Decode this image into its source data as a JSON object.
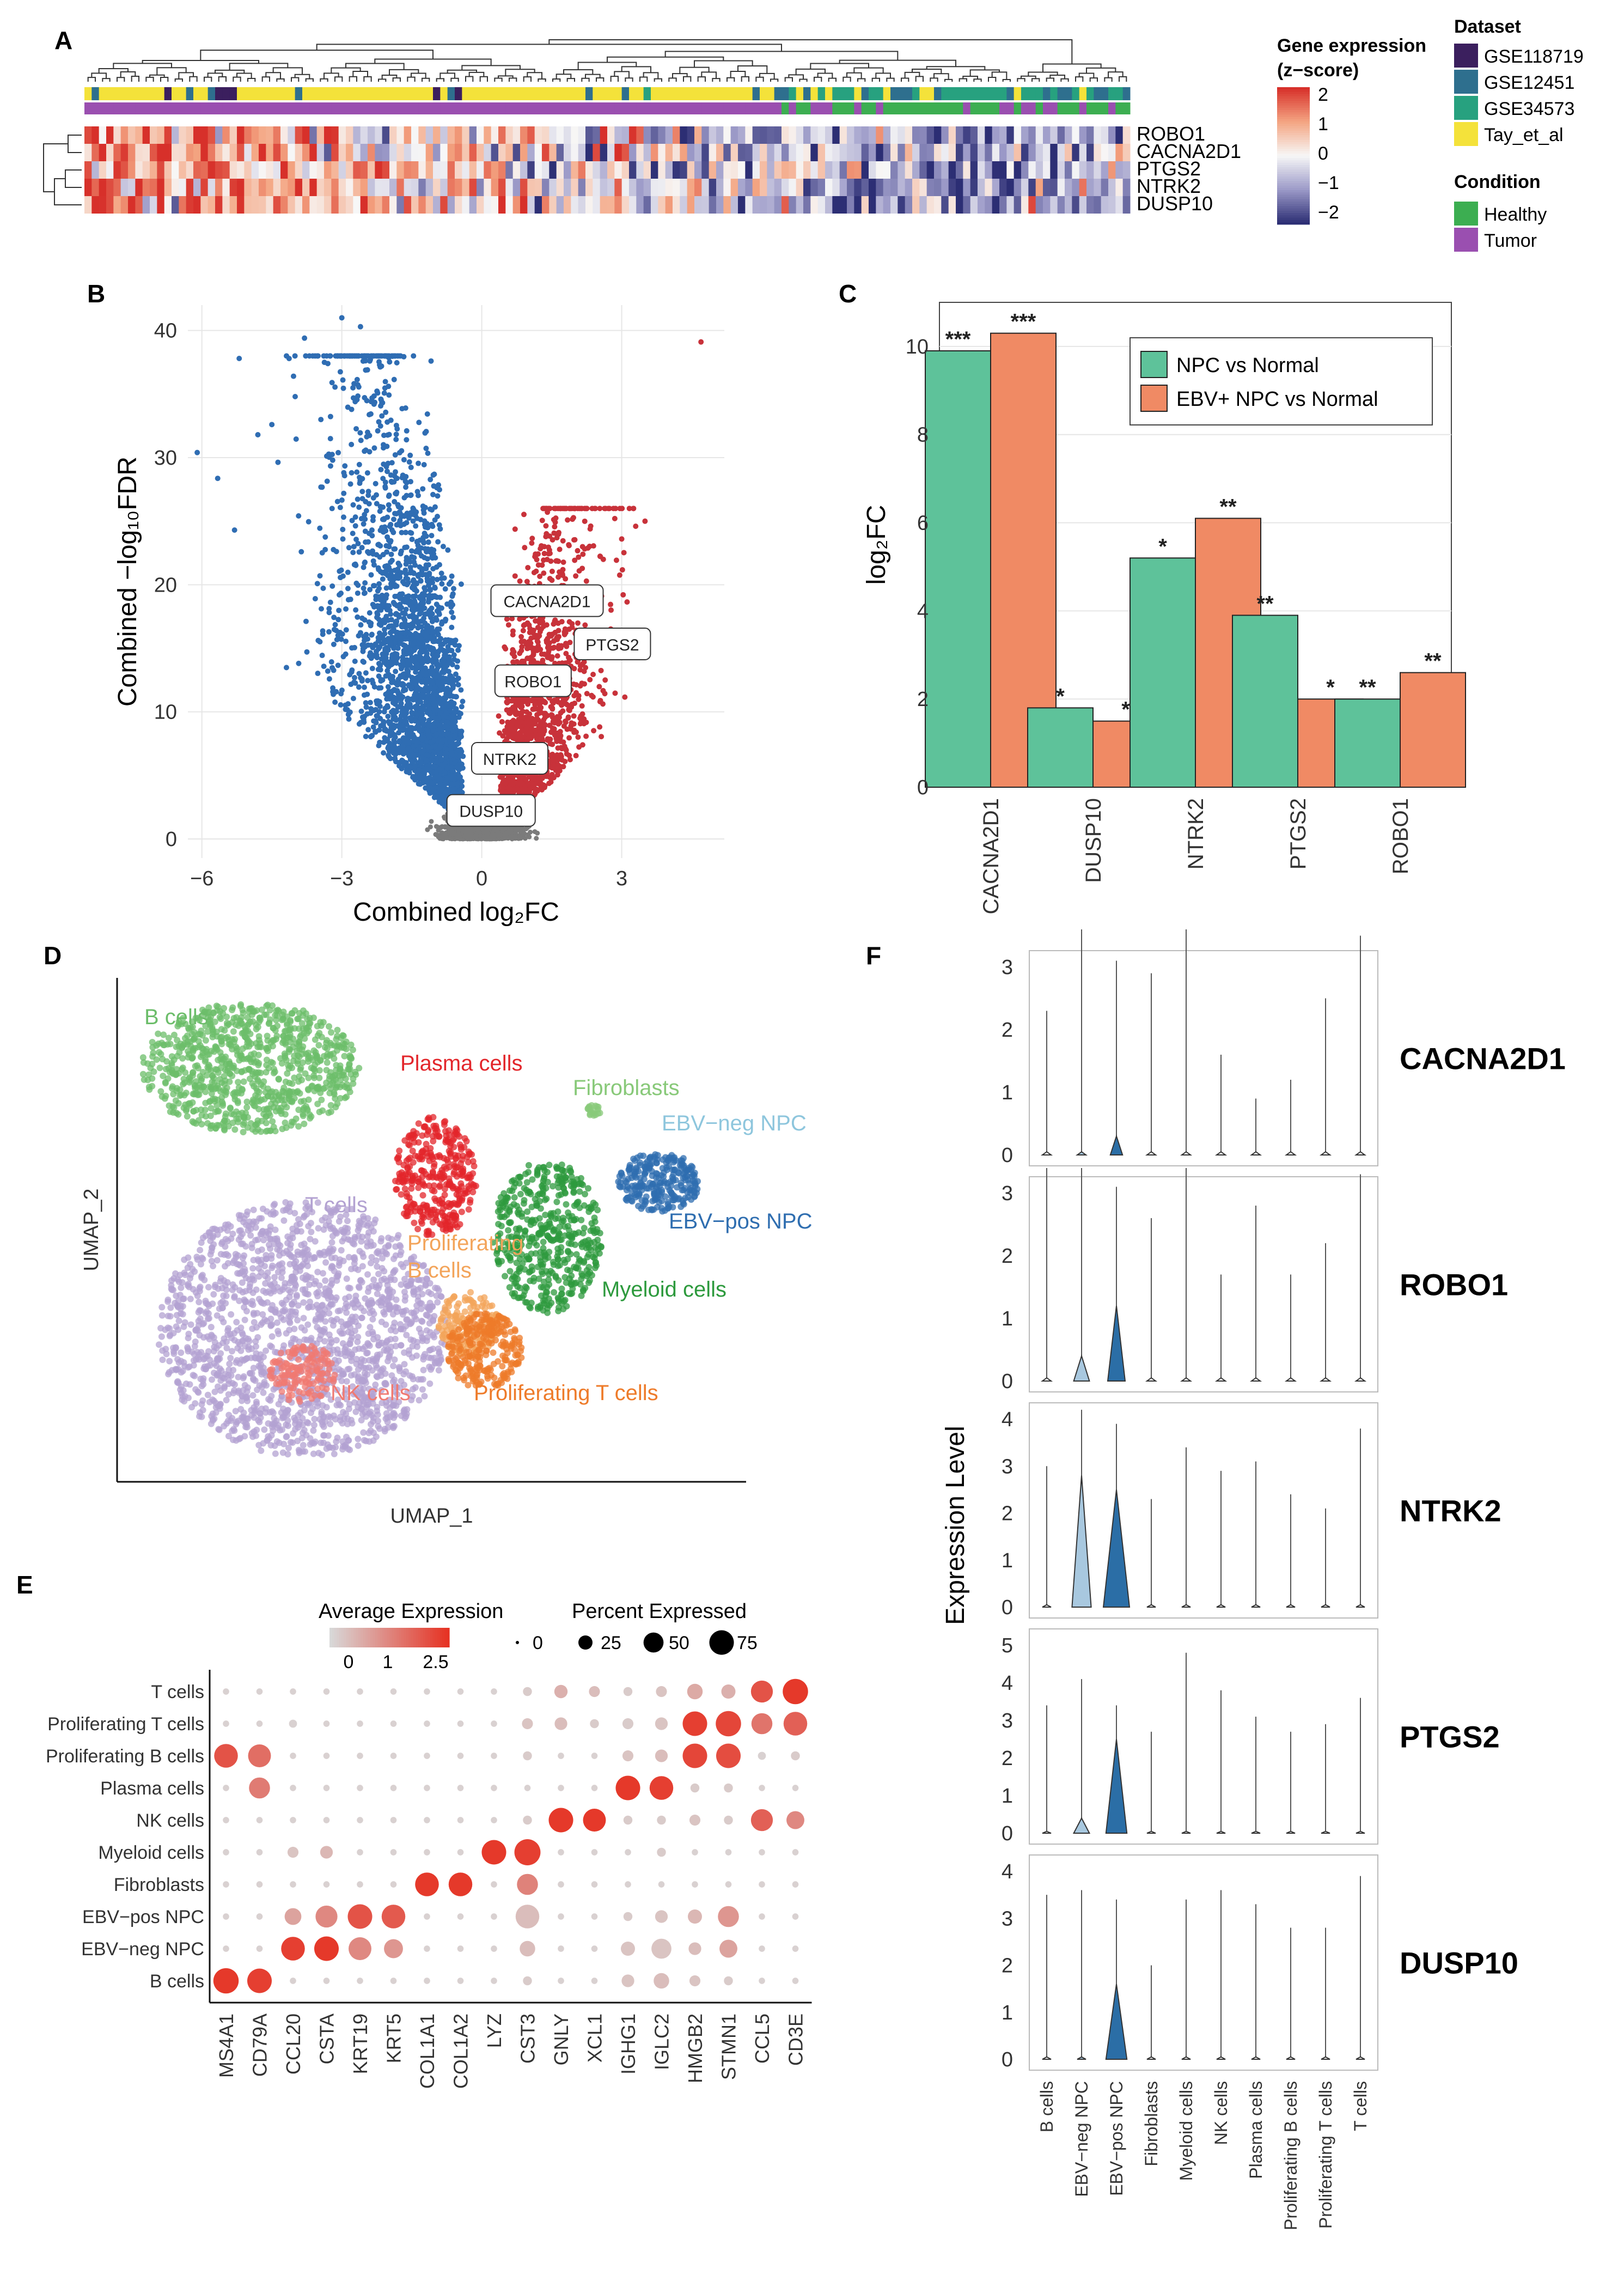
{
  "panels": {
    "a": "A",
    "b": "B",
    "c": "C",
    "d": "D",
    "e": "E",
    "f": "F"
  },
  "chart_data": [
    {
      "type": "heatmap",
      "panel": "A",
      "genes": [
        "ROBO1",
        "CACNA2D1",
        "PTGS2",
        "NTRK2",
        "DUSP10"
      ],
      "n_samples": 144,
      "legend_expression": {
        "title1": "Gene expression",
        "title2": "(z−score)",
        "ticks": [
          "2",
          "1",
          "0",
          "−1",
          "−2"
        ],
        "colors": [
          "#d7302a",
          "#f4a582",
          "#f7f7f7",
          "#9c9ac8",
          "#2c2e74"
        ]
      },
      "legend_dataset": {
        "title": "Dataset",
        "entries": [
          "GSE118719",
          "GSE12451",
          "GSE34573",
          "Tay_et_al"
        ],
        "colors": [
          "#3b1f5e",
          "#2e6f8e",
          "#27a17f",
          "#f4e23a"
        ]
      },
      "legend_condition": {
        "title": "Condition",
        "entries": [
          "Healthy",
          "Tumor"
        ],
        "colors": [
          "#3cae51",
          "#9a4fb0"
        ]
      }
    },
    {
      "type": "scatter",
      "panel": "B",
      "xlabel": "Combined log₂FC",
      "ylabel": "Combined −log₁₀FDR",
      "xlim": [
        -6.3,
        5.2
      ],
      "ylim": [
        -1.5,
        42
      ],
      "xticks": [
        "−6",
        "−3",
        "0",
        "3"
      ],
      "yticks": [
        "0",
        "10",
        "20",
        "30",
        "40"
      ],
      "highlight_points": [
        {
          "x": -6.1,
          "y": 30.4
        },
        {
          "x": -5.2,
          "y": 37.8
        },
        {
          "x": -5.3,
          "y": 24.3
        },
        {
          "x": -4.8,
          "y": 31.8
        },
        {
          "x": -4.5,
          "y": 32.6
        },
        {
          "x": -4.0,
          "y": 34.8
        },
        {
          "x": -3.8,
          "y": 39.4
        },
        {
          "x": -3.0,
          "y": 41.0
        },
        {
          "x": -2.6,
          "y": 40.3
        },
        {
          "x": -2.4,
          "y": 37.6
        },
        {
          "x": -3.3,
          "y": 37.4
        },
        {
          "x": 4.7,
          "y": 39.1
        },
        {
          "x": 3.5,
          "y": 25.0
        },
        {
          "x": 3.3,
          "y": 24.6
        },
        {
          "x": 3.0,
          "y": 23.6
        }
      ],
      "labels": [
        {
          "text": "CACNA2D1",
          "x": 1.4,
          "y": 18.7
        },
        {
          "text": "PTGS2",
          "x": 2.8,
          "y": 15.3
        },
        {
          "text": "ROBO1",
          "x": 1.1,
          "y": 12.4
        },
        {
          "text": "NTRK2",
          "x": 0.6,
          "y": 6.3
        },
        {
          "text": "DUSP10",
          "x": 0.2,
          "y": 2.2
        }
      ],
      "colors": {
        "down": "#2f6db3",
        "up": "#c8323a",
        "ns": "#7b7b7b"
      }
    },
    {
      "type": "bar",
      "panel": "C",
      "categories": [
        "CACNA2D1",
        "DUSP10",
        "NTRK2",
        "PTGS2",
        "ROBO1"
      ],
      "series": [
        {
          "name": "NPC vs Normal",
          "color": "#5ec29a",
          "values": [
            9.9,
            1.8,
            5.2,
            3.9,
            2.0
          ],
          "stars": [
            "***",
            "*",
            "*",
            "**",
            "**"
          ]
        },
        {
          "name": "EBV+ NPC vs Normal",
          "color": "#f08a64",
          "values": [
            10.3,
            1.5,
            6.1,
            2.0,
            2.6
          ],
          "stars": [
            "***",
            "*",
            "**",
            "*",
            "**"
          ]
        }
      ],
      "ylabel": "log₂FC",
      "ylim": [
        0,
        11
      ],
      "yticks": [
        "0",
        "2",
        "4",
        "6",
        "8",
        "10"
      ]
    },
    {
      "type": "scatter",
      "panel": "D",
      "xlabel": "UMAP_1",
      "ylabel": "UMAP_2",
      "clusters": [
        {
          "name": "B cells",
          "color": "#6cbd6a"
        },
        {
          "name": "Plasma cells",
          "color": "#e3262b"
        },
        {
          "name": "Fibroblasts",
          "color": "#88c979"
        },
        {
          "name": "EBV−neg NPC",
          "color": "#8ec6dd"
        },
        {
          "name": "EBV−pos NPC",
          "color": "#2f6eb0"
        },
        {
          "name": "T cells",
          "color": "#b3a2d2"
        },
        {
          "name": "Proliferating",
          "color": "#f3a45a"
        },
        {
          "name": "B cells",
          "color": "#f3a45a"
        },
        {
          "name": "Myeloid cells",
          "color": "#2d9a3d"
        },
        {
          "name": "NK cells",
          "color": "#f07a72"
        },
        {
          "name": "Proliferating T cells",
          "color": "#ee7b2a"
        }
      ]
    },
    {
      "type": "scatter",
      "panel": "E",
      "title_avg": "Average Expression",
      "title_pct": "Percent Expressed",
      "avg_ticks": [
        "0",
        "1",
        "2.5"
      ],
      "pct_ticks": [
        "0",
        "25",
        "50",
        "75"
      ],
      "genes": [
        "MS4A1",
        "CD79A",
        "CCL20",
        "CSTA",
        "KRT19",
        "KRT5",
        "COL1A1",
        "COL1A2",
        "LYZ",
        "CST3",
        "GNLY",
        "XCL1",
        "IGHG1",
        "IGLC2",
        "HMGB2",
        "STMN1",
        "CCL5",
        "CD3E"
      ],
      "cell_types": [
        "T cells",
        "Proliferating T cells",
        "Proliferating B cells",
        "Plasma cells",
        "NK cells",
        "Myeloid cells",
        "Fibroblasts",
        "EBV−pos NPC",
        "EBV−neg NPC",
        "B cells"
      ],
      "avg": [
        [
          0.1,
          0.1,
          0.1,
          0.1,
          0.1,
          0.1,
          0.1,
          0.1,
          0.1,
          0.2,
          0.6,
          0.4,
          0.2,
          0.3,
          0.7,
          0.6,
          2.0,
          2.4
        ],
        [
          0.1,
          0.1,
          0.1,
          0.1,
          0.1,
          0.1,
          0.1,
          0.1,
          0.1,
          0.3,
          0.4,
          0.2,
          0.2,
          0.3,
          2.3,
          2.2,
          1.5,
          1.8
        ],
        [
          2.0,
          1.6,
          0.1,
          0.1,
          0.1,
          0.1,
          0.1,
          0.1,
          0.1,
          0.2,
          0.1,
          0.1,
          0.3,
          0.4,
          2.2,
          2.1,
          0.1,
          0.2
        ],
        [
          0.1,
          1.4,
          0.1,
          0.1,
          0.1,
          0.1,
          0.1,
          0.1,
          0.1,
          0.1,
          0.1,
          0.1,
          2.4,
          2.3,
          0.2,
          0.2,
          0.1,
          0.1
        ],
        [
          0.1,
          0.1,
          0.1,
          0.1,
          0.1,
          0.1,
          0.1,
          0.1,
          0.1,
          0.2,
          2.4,
          2.4,
          0.2,
          0.2,
          0.3,
          0.2,
          1.8,
          1.2
        ],
        [
          0.1,
          0.1,
          0.3,
          0.5,
          0.1,
          0.1,
          0.1,
          0.1,
          2.4,
          2.3,
          0.1,
          0.1,
          0.1,
          0.2,
          0.1,
          0.1,
          0.1,
          0.1
        ],
        [
          0.1,
          0.1,
          0.1,
          0.1,
          0.1,
          0.1,
          2.4,
          2.4,
          0.1,
          1.3,
          0.1,
          0.1,
          0.1,
          0.1,
          0.1,
          0.1,
          0.1,
          0.1
        ],
        [
          0.1,
          0.1,
          0.8,
          1.2,
          2.0,
          1.9,
          0.1,
          0.1,
          0.1,
          0.4,
          0.1,
          0.1,
          0.2,
          0.3,
          0.5,
          1.0,
          0.1,
          0.1
        ],
        [
          0.1,
          0.1,
          2.3,
          2.4,
          1.2,
          1.0,
          0.1,
          0.1,
          0.1,
          0.4,
          0.1,
          0.1,
          0.3,
          0.3,
          0.4,
          0.8,
          0.1,
          0.1
        ],
        [
          2.4,
          2.3,
          0.1,
          0.1,
          0.1,
          0.1,
          0.1,
          0.1,
          0.1,
          0.2,
          0.1,
          0.1,
          0.3,
          0.4,
          0.3,
          0.2,
          0.1,
          0.1
        ]
      ],
      "pct": [
        [
          5,
          5,
          5,
          5,
          5,
          5,
          5,
          5,
          5,
          10,
          22,
          15,
          10,
          15,
          30,
          25,
          60,
          80
        ],
        [
          5,
          5,
          8,
          5,
          5,
          5,
          5,
          5,
          5,
          15,
          20,
          10,
          15,
          20,
          75,
          80,
          55,
          70
        ],
        [
          70,
          65,
          5,
          5,
          5,
          5,
          5,
          5,
          5,
          10,
          5,
          5,
          15,
          20,
          75,
          75,
          8,
          10
        ],
        [
          5,
          55,
          5,
          5,
          5,
          5,
          5,
          5,
          5,
          5,
          5,
          5,
          75,
          70,
          10,
          10,
          5,
          5
        ],
        [
          5,
          5,
          5,
          5,
          5,
          5,
          5,
          5,
          5,
          10,
          75,
          65,
          10,
          10,
          15,
          10,
          60,
          40
        ],
        [
          5,
          5,
          15,
          20,
          5,
          5,
          5,
          5,
          75,
          85,
          5,
          5,
          5,
          10,
          5,
          5,
          5,
          5
        ],
        [
          5,
          5,
          5,
          5,
          5,
          5,
          70,
          70,
          5,
          55,
          5,
          5,
          5,
          5,
          5,
          5,
          5,
          5
        ],
        [
          5,
          5,
          35,
          60,
          75,
          70,
          5,
          5,
          5,
          70,
          5,
          5,
          10,
          20,
          25,
          55,
          5,
          5
        ],
        [
          5,
          5,
          70,
          75,
          65,
          45,
          5,
          5,
          5,
          30,
          5,
          5,
          25,
          50,
          20,
          40,
          5,
          5
        ],
        [
          80,
          75,
          5,
          5,
          5,
          5,
          5,
          5,
          5,
          10,
          5,
          5,
          20,
          30,
          15,
          10,
          5,
          5
        ]
      ]
    },
    {
      "type": "area",
      "panel": "F",
      "ylabel": "Expression Level",
      "cell_types": [
        "B cells",
        "EBV−neg NPC",
        "EBV−pos NPC",
        "Fibroblasts",
        "Myeloid cells",
        "NK cells",
        "Plasma cells",
        "Proliferating B cells",
        "Proliferating T cells",
        "T cells"
      ],
      "genes": [
        {
          "name": "CACNA2D1",
          "ymax": 3,
          "yticks": [
            "0",
            "1",
            "2",
            "3"
          ],
          "max": [
            2.3,
            3.6,
            3.1,
            2.9,
            3.6,
            1.6,
            0.9,
            1.2,
            2.5,
            3.5
          ],
          "width": [
            0.02,
            0.02,
            0.35,
            0.02,
            0.02,
            0.02,
            0.02,
            0.02,
            0.02,
            0.02
          ],
          "bulk": [
            0,
            0,
            0.3,
            0,
            0,
            0,
            0,
            0,
            0,
            0
          ]
        },
        {
          "name": "ROBO1",
          "ymax": 3,
          "yticks": [
            "0",
            "1",
            "2",
            "3"
          ],
          "max": [
            3.4,
            3.4,
            3.1,
            2.6,
            3.4,
            1.7,
            2.8,
            1.7,
            2.2,
            3.3
          ],
          "width": [
            0.02,
            0.45,
            0.5,
            0.02,
            0.02,
            0.02,
            0.02,
            0.02,
            0.02,
            0.02
          ],
          "bulk": [
            0,
            0.4,
            1.2,
            0,
            0,
            0,
            0,
            0,
            0,
            0
          ]
        },
        {
          "name": "NTRK2",
          "ymax": 4,
          "yticks": [
            "0",
            "1",
            "2",
            "3",
            "4"
          ],
          "max": [
            3.0,
            4.2,
            3.9,
            2.3,
            3.4,
            2.9,
            3.1,
            2.4,
            2.1,
            3.8
          ],
          "width": [
            0.02,
            0.55,
            0.75,
            0.02,
            0.02,
            0.02,
            0.02,
            0.02,
            0.02,
            0.02
          ],
          "bulk": [
            0,
            2.8,
            2.5,
            0,
            0,
            0,
            0,
            0,
            0,
            0
          ]
        },
        {
          "name": "PTGS2",
          "ymax": 5,
          "yticks": [
            "0",
            "1",
            "2",
            "3",
            "4",
            "5"
          ],
          "max": [
            3.4,
            4.1,
            3.4,
            2.7,
            4.8,
            3.8,
            3.1,
            2.7,
            2.9,
            3.6
          ],
          "width": [
            0.02,
            0.45,
            0.6,
            0.02,
            0.02,
            0.02,
            0.02,
            0.02,
            0.02,
            0.02
          ],
          "bulk": [
            0,
            0.4,
            2.5,
            0,
            0,
            0,
            0,
            0,
            0,
            0
          ]
        },
        {
          "name": "DUSP10",
          "ymax": 4,
          "yticks": [
            "0",
            "1",
            "2",
            "3",
            "4"
          ],
          "max": [
            3.5,
            3.6,
            3.4,
            2.0,
            3.4,
            3.6,
            3.3,
            2.8,
            2.8,
            3.9
          ],
          "width": [
            0.02,
            0.02,
            0.6,
            0.02,
            0.02,
            0.02,
            0.02,
            0.02,
            0.02,
            0.02
          ],
          "bulk": [
            0,
            0,
            1.6,
            0,
            0,
            0,
            0,
            0,
            0,
            0
          ]
        }
      ],
      "colors": {
        "EBV−neg NPC": "#a8c8df",
        "EBV−pos NPC": "#2b6ea6",
        "default": "#ffffff"
      }
    }
  ]
}
